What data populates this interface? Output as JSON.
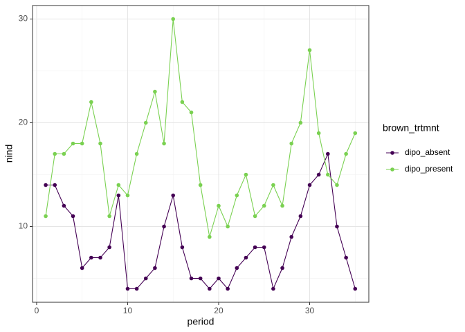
{
  "chart_data": {
    "type": "line",
    "x_label": "period",
    "y_label": "nind",
    "legend_title": "brown_trtmnt",
    "x": [
      1,
      2,
      3,
      4,
      5,
      6,
      7,
      8,
      9,
      10,
      11,
      12,
      13,
      14,
      15,
      16,
      17,
      18,
      19,
      20,
      21,
      22,
      23,
      24,
      25,
      26,
      27,
      28,
      29,
      30,
      31,
      32,
      33,
      34,
      35
    ],
    "series": [
      {
        "name": "dipo_absent",
        "color": "#440154",
        "values": [
          14,
          14,
          12,
          11,
          6,
          7,
          7,
          8,
          13,
          4,
          4,
          5,
          6,
          10,
          13,
          8,
          5,
          5,
          4,
          5,
          4,
          6,
          7,
          8,
          8,
          4,
          6,
          9,
          11,
          14,
          15,
          17,
          10,
          7,
          4
        ]
      },
      {
        "name": "dipo_present",
        "color": "#7ad151",
        "values": [
          11,
          17,
          17,
          18,
          18,
          22,
          18,
          11,
          14,
          13,
          17,
          20,
          23,
          18,
          30,
          22,
          21,
          14,
          9,
          12,
          10,
          13,
          15,
          11,
          12,
          14,
          12,
          18,
          20,
          27,
          19,
          15,
          14,
          17,
          19
        ]
      }
    ],
    "xlim": [
      -0.45,
      36.5
    ],
    "ylim": [
      2.7,
      31.3
    ],
    "xticks": [
      0,
      10,
      20,
      30
    ],
    "yticks": [
      10,
      20,
      30
    ],
    "x_minor_ticks": [
      5,
      15,
      25,
      35
    ],
    "y_minor_ticks": [
      5,
      15,
      25
    ],
    "grid": true
  }
}
